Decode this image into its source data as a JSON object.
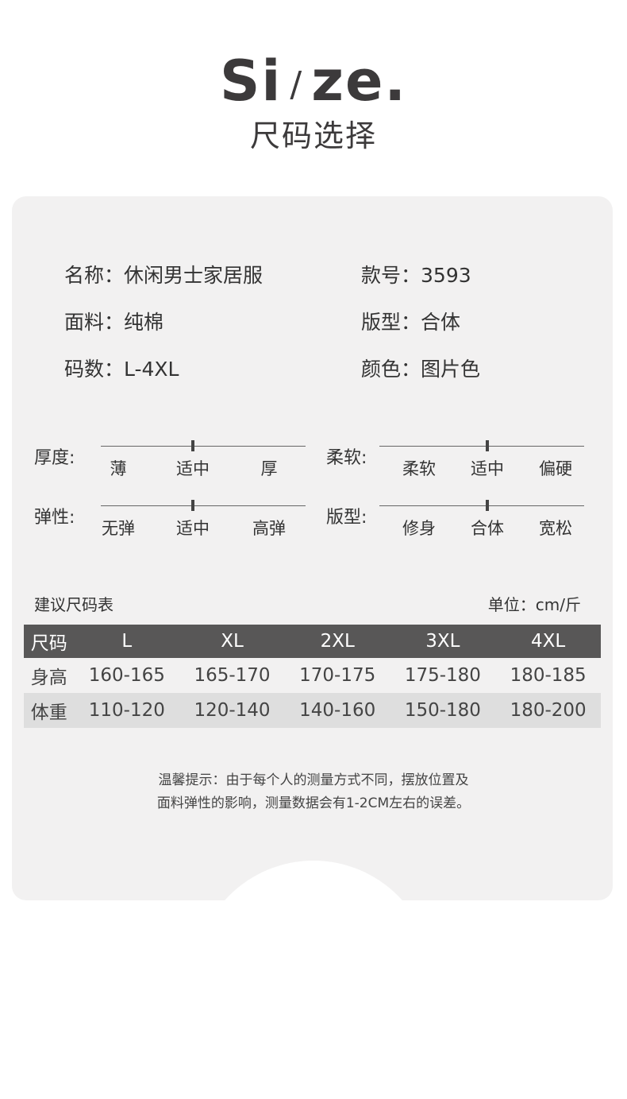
{
  "header": {
    "title_en_a": "Si",
    "title_en_slash": "/",
    "title_en_b": "ze.",
    "title_cn": "尺码选择"
  },
  "info": [
    {
      "label": "名称：",
      "value": "休闲男士家居服"
    },
    {
      "label": "款号：",
      "value": "3593"
    },
    {
      "label": "面料：",
      "value": "纯棉"
    },
    {
      "label": "版型：",
      "value": "合体"
    },
    {
      "label": "码数：",
      "value": "L-4XL"
    },
    {
      "label": "颜色：",
      "value": "图片色"
    }
  ],
  "scales": [
    {
      "label": "厚度:",
      "options": [
        "薄",
        "适中",
        "厚"
      ],
      "selected": "适中"
    },
    {
      "label": "柔软:",
      "options": [
        "柔软",
        "适中",
        "偏硬"
      ],
      "selected": "适中"
    },
    {
      "label": "弹性:",
      "options": [
        "无弹",
        "适中",
        "高弹"
      ],
      "selected": "适中"
    },
    {
      "label": "版型:",
      "options": [
        "修身",
        "合体",
        "宽松"
      ],
      "selected": "合体"
    }
  ],
  "table": {
    "title": "建议尺码表",
    "unit": "单位：cm/斤",
    "headers": [
      "尺码",
      "L",
      "XL",
      "2XL",
      "3XL",
      "4XL"
    ],
    "rows": [
      [
        "身高",
        "160-165",
        "165-170",
        "170-175",
        "175-180",
        "180-185"
      ],
      [
        "体重",
        "110-120",
        "120-140",
        "140-160",
        "150-180",
        "180-200"
      ]
    ]
  },
  "note": {
    "line1": "温馨提示：由于每个人的测量方式不同，摆放位置及",
    "line2": "面料弹性的影响，测量数据会有1-2CM左右的误差。"
  },
  "colors": {
    "card": "#f2f1f1",
    "table_header": "#585757",
    "alt_row": "#dedede",
    "text": "#3c3a3b"
  }
}
